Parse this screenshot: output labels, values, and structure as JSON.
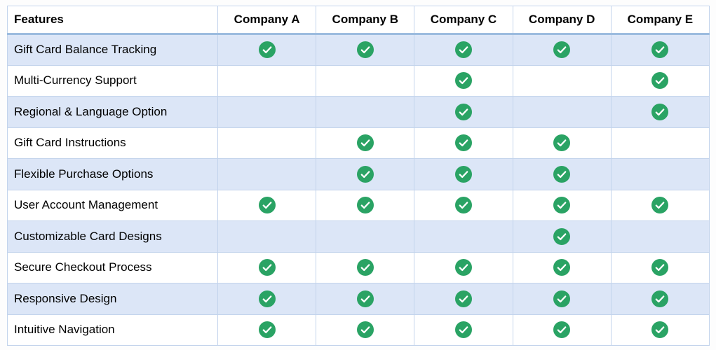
{
  "table": {
    "feature_header": "Features",
    "companies": [
      "Company A",
      "Company B",
      "Company C",
      "Company D",
      "Company E"
    ],
    "rows": [
      {
        "feature": "Gift Card Balance Tracking",
        "support": [
          true,
          true,
          true,
          true,
          true
        ]
      },
      {
        "feature": "Multi-Currency Support",
        "support": [
          false,
          false,
          true,
          false,
          true
        ]
      },
      {
        "feature": "Regional & Language Option",
        "support": [
          false,
          false,
          true,
          false,
          true
        ]
      },
      {
        "feature": "Gift Card Instructions",
        "support": [
          false,
          true,
          true,
          true,
          false
        ]
      },
      {
        "feature": "Flexible Purchase Options",
        "support": [
          false,
          true,
          true,
          true,
          false
        ]
      },
      {
        "feature": "User Account Management",
        "support": [
          true,
          true,
          true,
          true,
          true
        ]
      },
      {
        "feature": "Customizable Card Designs",
        "support": [
          false,
          false,
          false,
          true,
          false
        ]
      },
      {
        "feature": "Secure Checkout Process",
        "support": [
          true,
          true,
          true,
          true,
          true
        ]
      },
      {
        "feature": "Responsive Design",
        "support": [
          true,
          true,
          true,
          true,
          true
        ]
      },
      {
        "feature": "Intuitive Navigation",
        "support": [
          true,
          true,
          true,
          true,
          true
        ]
      }
    ],
    "check_icon": "checkmark-circle",
    "colors": {
      "check_green": "#2aa364",
      "row_alt_blue": "#dce6f7",
      "border": "#c3d4ec",
      "header_underline": "#9cbcdf"
    }
  }
}
